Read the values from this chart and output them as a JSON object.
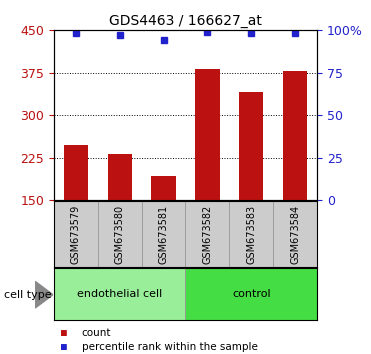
{
  "title": "GDS4463 / 166627_at",
  "samples": [
    "GSM673579",
    "GSM673580",
    "GSM673581",
    "GSM673582",
    "GSM673583",
    "GSM673584"
  ],
  "bar_values": [
    247,
    232,
    193,
    382,
    340,
    377
  ],
  "percentile_values": [
    98,
    97,
    94,
    99,
    98,
    98
  ],
  "bar_color": "#bb1111",
  "dot_color": "#2222cc",
  "ylim_left": [
    150,
    450
  ],
  "ylim_right": [
    0,
    100
  ],
  "yticks_left": [
    150,
    225,
    300,
    375,
    450
  ],
  "yticks_right": [
    0,
    25,
    50,
    75,
    100
  ],
  "ytick_labels_right": [
    "0",
    "25",
    "50",
    "75",
    "100%"
  ],
  "grid_values": [
    225,
    300,
    375
  ],
  "groups": [
    {
      "label": "endothelial cell",
      "indices": [
        0,
        1,
        2
      ],
      "color": "#99ee99"
    },
    {
      "label": "control",
      "indices": [
        3,
        4,
        5
      ],
      "color": "#44dd44"
    }
  ],
  "group_label": "cell type",
  "legend_items": [
    {
      "color": "#bb1111",
      "label": "count"
    },
    {
      "color": "#2222cc",
      "label": "percentile rank within the sample"
    }
  ],
  "tick_box_color": "#cccccc",
  "tick_box_edge": "#999999"
}
